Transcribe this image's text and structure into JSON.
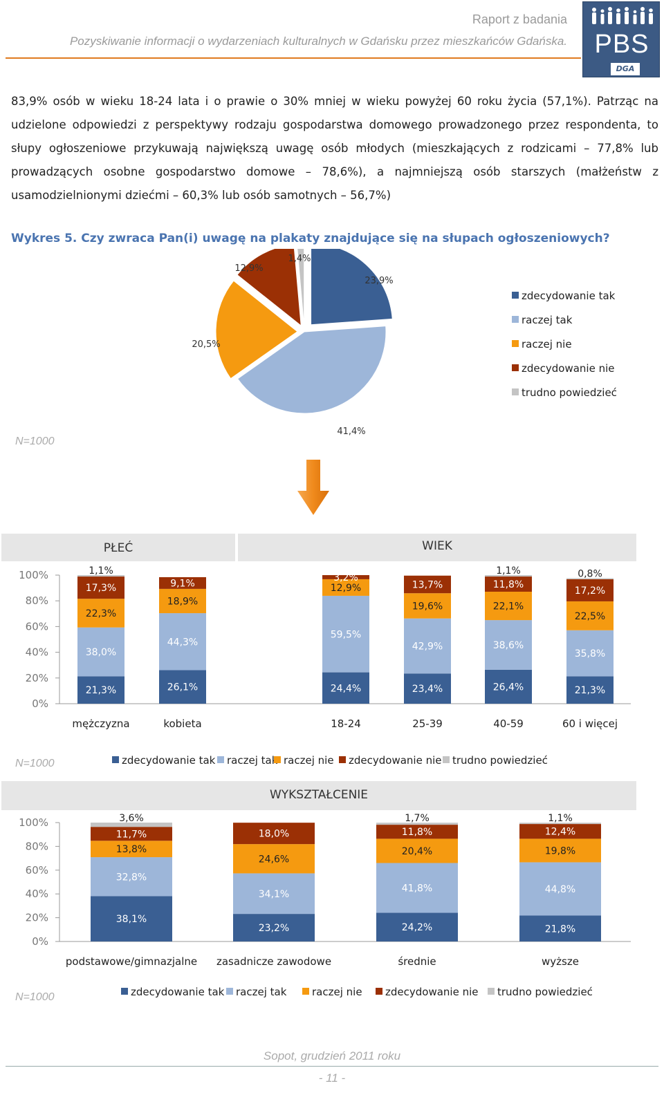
{
  "header": {
    "title": "Raport z badania",
    "subtitle": "Pozyskiwanie informacji o wydarzeniach kulturalnych w Gdańsku przez mieszkańców Gdańska.",
    "logo_text": "PBS",
    "logo_sub": "DGA"
  },
  "paragraph": "83,9% osób w wieku 18-24 lata i o prawie o 30% mniej w wieku powyżej 60 roku życia (57,1%). Patrząc na udzielone odpowiedzi z perspektywy rodzaju gospodarstwa domowego prowadzonego przez respondenta, to słupy ogłoszeniowe przykuwają największą uwagę osób młodych (mieszkających z rodzicami – 77,8% lub prowadzących osobne gospodarstwo domowe – 78,6%), a najmniejszą osób starszych (małżeństw z usamodzielnionymi dziećmi – 60,3% lub osób samotnych – 56,7%)",
  "figure_title": "Wykres 5. Czy zwraca Pan(i) uwagę na plakaty znajdujące się na słupach ogłoszeniowych?",
  "n_label": "N=1000",
  "colors": {
    "zdecydowanie_tak": "#3a5f93",
    "raczej_tak": "#9db6d9",
    "raczej_nie": "#f59a10",
    "zdecydowanie_nie": "#9b3005",
    "trudno": "#c4c4c4",
    "arrow": "#f08a1c"
  },
  "chart_data": [
    {
      "type": "pie",
      "slices": [
        {
          "name": "zdecydowanie tak",
          "value": 23.9,
          "label": "23,9%"
        },
        {
          "name": "raczej tak",
          "value": 41.4,
          "label": "41,4%"
        },
        {
          "name": "raczej nie",
          "value": 20.5,
          "label": "20,5%"
        },
        {
          "name": "zdecydowanie nie",
          "value": 12.9,
          "label": "12,9%"
        },
        {
          "name": "trudno powiedzieć",
          "value": 1.4,
          "label": "1,4%"
        }
      ],
      "legend": [
        "zdecydowanie tak",
        "raczej tak",
        "raczej nie",
        "zdecydowanie nie",
        "trudno powiedzieć"
      ],
      "legend_position": "right"
    },
    {
      "type": "bar",
      "stacked": true,
      "group_labels": [
        "PŁEĆ",
        "WIEK"
      ],
      "categories": [
        "mężczyzna",
        "kobieta",
        "18-24",
        "25-39",
        "40-59",
        "60 i więcej"
      ],
      "yticks": [
        "100%",
        "80%",
        "60%",
        "40%",
        "20%",
        "0%"
      ],
      "series": [
        {
          "name": "zdecydowanie tak",
          "values": [
            21.3,
            26.1,
            24.4,
            23.4,
            26.4,
            21.3
          ],
          "labels": [
            "21,3%",
            "26,1%",
            "24,4%",
            "23,4%",
            "26,4%",
            "21,3%"
          ]
        },
        {
          "name": "raczej tak",
          "values": [
            38.0,
            44.3,
            59.5,
            42.9,
            38.6,
            35.8
          ],
          "labels": [
            "38,0%",
            "44,3%",
            "59,5%",
            "42,9%",
            "38,6%",
            "35,8%"
          ]
        },
        {
          "name": "raczej nie",
          "values": [
            22.3,
            18.9,
            12.9,
            19.6,
            22.1,
            22.5
          ],
          "labels": [
            "22,3%",
            "18,9%",
            "12,9%",
            "19,6%",
            "22,1%",
            "22,5%"
          ]
        },
        {
          "name": "zdecydowanie nie",
          "values": [
            17.3,
            9.1,
            3.2,
            13.7,
            11.8,
            17.2
          ],
          "labels": [
            "17,3%",
            "9,1%",
            "3,2%",
            "13,7%",
            "11,8%",
            "17,2%"
          ]
        },
        {
          "name": "trudno powiedzieć",
          "values": [
            1.1,
            0,
            0,
            0,
            1.1,
            0.8
          ],
          "labels": [
            "1,1%",
            "",
            "",
            "",
            "1,1%",
            "0,8%"
          ]
        }
      ],
      "legend": [
        "zdecydowanie tak",
        "raczej tak",
        "raczej nie",
        "zdecydowanie nie",
        "trudno powiedzieć"
      ],
      "legend_position": "bottom"
    },
    {
      "type": "bar",
      "stacked": true,
      "group_labels": [
        "WYKSZTAŁCENIE"
      ],
      "categories": [
        "podstawowe/gimnazjalne",
        "zasadnicze zawodowe",
        "średnie",
        "wyższe"
      ],
      "yticks": [
        "100%",
        "80%",
        "60%",
        "40%",
        "20%",
        "0%"
      ],
      "series": [
        {
          "name": "zdecydowanie tak",
          "values": [
            38.1,
            23.2,
            24.2,
            21.8
          ],
          "labels": [
            "38,1%",
            "23,2%",
            "24,2%",
            "21,8%"
          ]
        },
        {
          "name": "raczej tak",
          "values": [
            32.8,
            34.1,
            41.8,
            44.8
          ],
          "labels": [
            "32,8%",
            "34,1%",
            "41,8%",
            "44,8%"
          ]
        },
        {
          "name": "raczej nie",
          "values": [
            13.8,
            24.6,
            20.4,
            19.8
          ],
          "labels": [
            "13,8%",
            "24,6%",
            "20,4%",
            "19,8%"
          ]
        },
        {
          "name": "zdecydowanie nie",
          "values": [
            11.7,
            18.0,
            11.8,
            12.4
          ],
          "labels": [
            "11,7%",
            "18,0%",
            "11,8%",
            "12,4%"
          ]
        },
        {
          "name": "trudno powiedzieć",
          "values": [
            3.6,
            0,
            1.7,
            1.1
          ],
          "labels": [
            "3,6%",
            "",
            "1,7%",
            "1,1%"
          ]
        }
      ],
      "legend": [
        "zdecydowanie tak",
        "raczej tak",
        "raczej nie",
        "zdecydowanie nie",
        "trudno powiedzieć"
      ],
      "legend_position": "bottom"
    }
  ],
  "footer": {
    "location_date": "Sopot, grudzień 2011 roku",
    "page": "- 11 -"
  }
}
